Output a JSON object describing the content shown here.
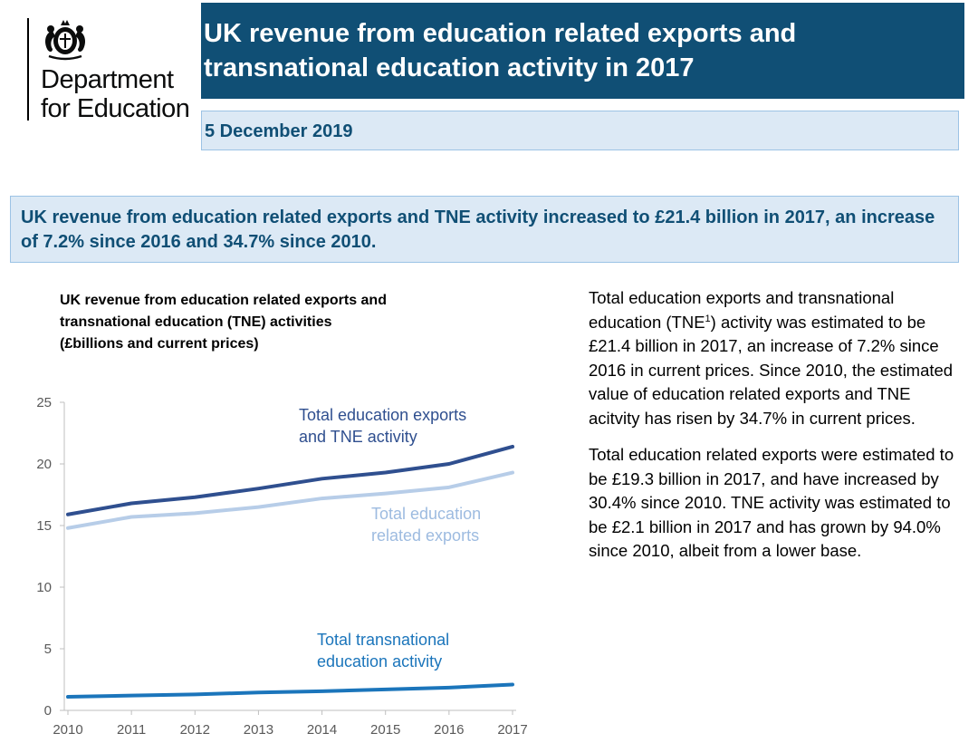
{
  "brand": {
    "dept_line1": "Department",
    "dept_line2": "for Education"
  },
  "header": {
    "title": "UK revenue from education related exports and transnational education activity in 2017",
    "date": "5 December 2019"
  },
  "headline": "UK revenue from education related exports and TNE activity increased to £21.4 billion in 2017, an increase of 7.2% since 2016 and 34.7% since 2010.",
  "chart_title_lines": [
    "UK revenue from education related exports and",
    "transnational education (TNE) activities",
    "(£billions and current prices)"
  ],
  "body": {
    "p1_before_sup": "Total education exports and transnational education (TNE",
    "p1_sup": "1",
    "p1_after_sup": ") activity was estimated to be £21.4 billion in 2017, an increase of 7.2% since 2016 in current prices. Since 2010, the estimated value of education related exports and TNE acitvity has risen by 34.7% in current prices.",
    "p2": "Total education related exports were estimated to be £19.3 billion in 2017, and have increased by 30.4% since 2010. TNE activity was estimated to be £2.1 billion in 2017 and has grown by 94.0% since 2010, albeit from a lower base."
  },
  "colors": {
    "banner": "#104f75",
    "light_box": "#dce9f5",
    "series_total": "#2f4f8f",
    "series_exports": "#b7cde8",
    "series_tne": "#1b75bb"
  },
  "chart_data": {
    "type": "line",
    "title": "UK revenue from education related exports and transnational education (TNE) activities (£billions and current prices)",
    "x": [
      "2010",
      "2011",
      "2012",
      "2013",
      "2014",
      "2015",
      "2016",
      "2017"
    ],
    "ylim": [
      0,
      25
    ],
    "yticks": [
      0,
      5,
      10,
      15,
      20,
      25
    ],
    "grid": false,
    "series": [
      {
        "name": "Total education exports and TNE activity",
        "label_lines": [
          "Total education exports",
          "and TNE activity"
        ],
        "color": "#2f4f8f",
        "values": [
          15.9,
          16.8,
          17.3,
          18.0,
          18.8,
          19.3,
          20.0,
          21.4
        ]
      },
      {
        "name": "Total education related exports",
        "label_lines": [
          "Total education",
          "related exports"
        ],
        "color": "#b7cde8",
        "values": [
          14.8,
          15.7,
          16.0,
          16.5,
          17.2,
          17.6,
          18.1,
          19.3
        ]
      },
      {
        "name": "Total transnational education activity",
        "label_lines": [
          "Total transnational",
          "education activity"
        ],
        "color": "#1b75bb",
        "values": [
          1.1,
          1.2,
          1.3,
          1.45,
          1.55,
          1.7,
          1.85,
          2.1
        ]
      }
    ]
  }
}
